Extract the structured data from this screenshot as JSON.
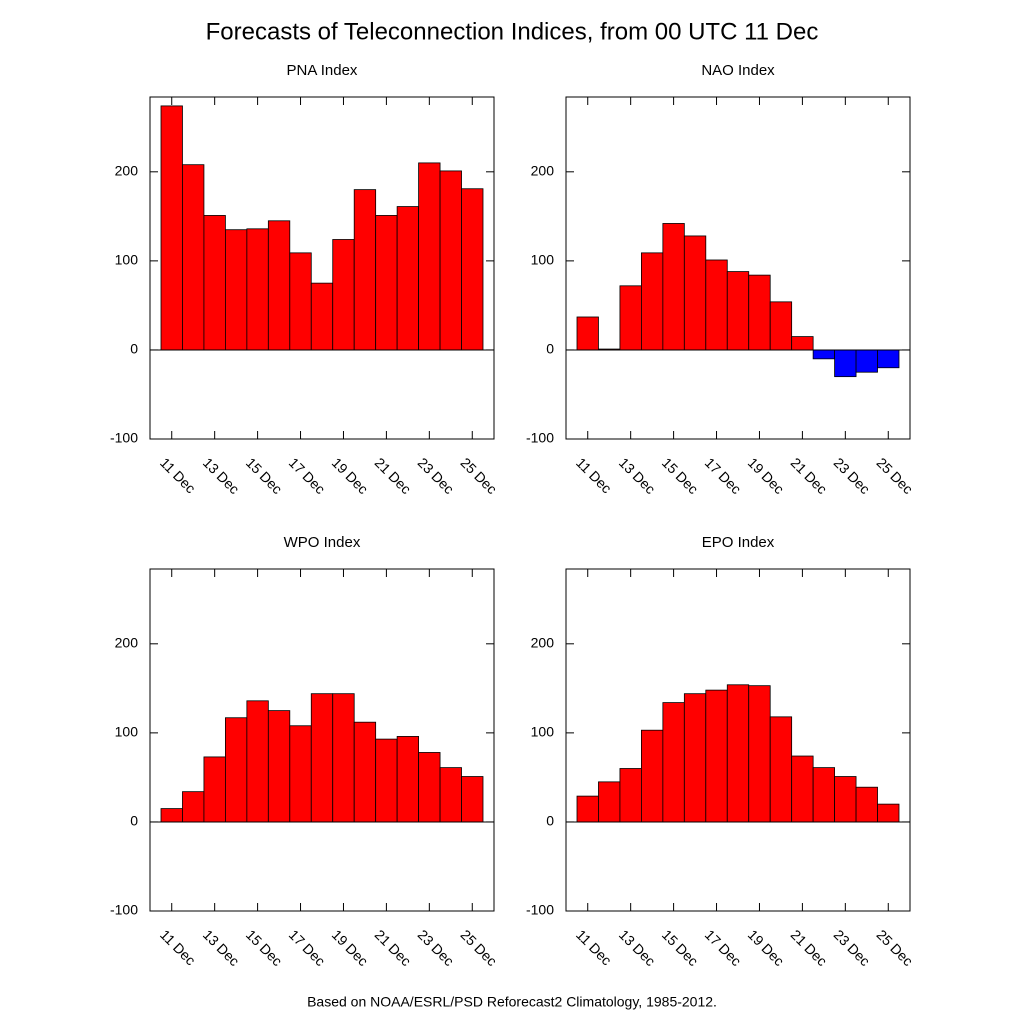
{
  "title": "Forecasts of Teleconnection Indices, from 00 UTC 11 Dec",
  "note": "Based on NOAA/ESRL/PSD Reforecast2 Climatology, 1985-2012.",
  "chart_data": [
    {
      "type": "bar",
      "title": "PNA Index",
      "categories": [
        "11 Dec",
        null,
        "13 Dec",
        null,
        "15 Dec",
        null,
        "17 Dec",
        null,
        "19 Dec",
        null,
        "21 Dec",
        null,
        "23 Dec",
        null,
        "25 Dec"
      ],
      "values": [
        274,
        208,
        151,
        135,
        136,
        145,
        109,
        75,
        124,
        180,
        151,
        161,
        210,
        201,
        181
      ],
      "color": "#ff0000",
      "negative_color": "#0000ff",
      "ylim": [
        -100,
        284
      ],
      "yticks": [
        -100,
        0,
        100,
        200
      ]
    },
    {
      "type": "bar",
      "title": "NAO Index",
      "categories": [
        "11 Dec",
        null,
        "13 Dec",
        null,
        "15 Dec",
        null,
        "17 Dec",
        null,
        "19 Dec",
        null,
        "21 Dec",
        null,
        "23 Dec",
        null,
        "25 Dec"
      ],
      "values": [
        37,
        1,
        72,
        109,
        142,
        128,
        101,
        88,
        84,
        54,
        15,
        -10,
        -30,
        -25,
        -20
      ],
      "color": "#ff0000",
      "negative_color": "#0000ff",
      "ylim": [
        -100,
        284
      ],
      "yticks": [
        -100,
        0,
        100,
        200
      ]
    },
    {
      "type": "bar",
      "title": "WPO Index",
      "categories": [
        "11 Dec",
        null,
        "13 Dec",
        null,
        "15 Dec",
        null,
        "17 Dec",
        null,
        "19 Dec",
        null,
        "21 Dec",
        null,
        "23 Dec",
        null,
        "25 Dec"
      ],
      "values": [
        15,
        34,
        73,
        117,
        136,
        125,
        108,
        144,
        144,
        112,
        93,
        96,
        78,
        61,
        51
      ],
      "color": "#ff0000",
      "negative_color": "#0000ff",
      "ylim": [
        -100,
        284
      ],
      "yticks": [
        -100,
        0,
        100,
        200
      ]
    },
    {
      "type": "bar",
      "title": "EPO Index",
      "categories": [
        "11 Dec",
        null,
        "13 Dec",
        null,
        "15 Dec",
        null,
        "17 Dec",
        null,
        "19 Dec",
        null,
        "21 Dec",
        null,
        "23 Dec",
        null,
        "25 Dec"
      ],
      "values": [
        29,
        45,
        60,
        103,
        134,
        144,
        148,
        154,
        153,
        118,
        74,
        61,
        51,
        39,
        20
      ],
      "color": "#ff0000",
      "negative_color": "#0000ff",
      "ylim": [
        -100,
        284
      ],
      "yticks": [
        -100,
        0,
        100,
        200
      ]
    }
  ]
}
